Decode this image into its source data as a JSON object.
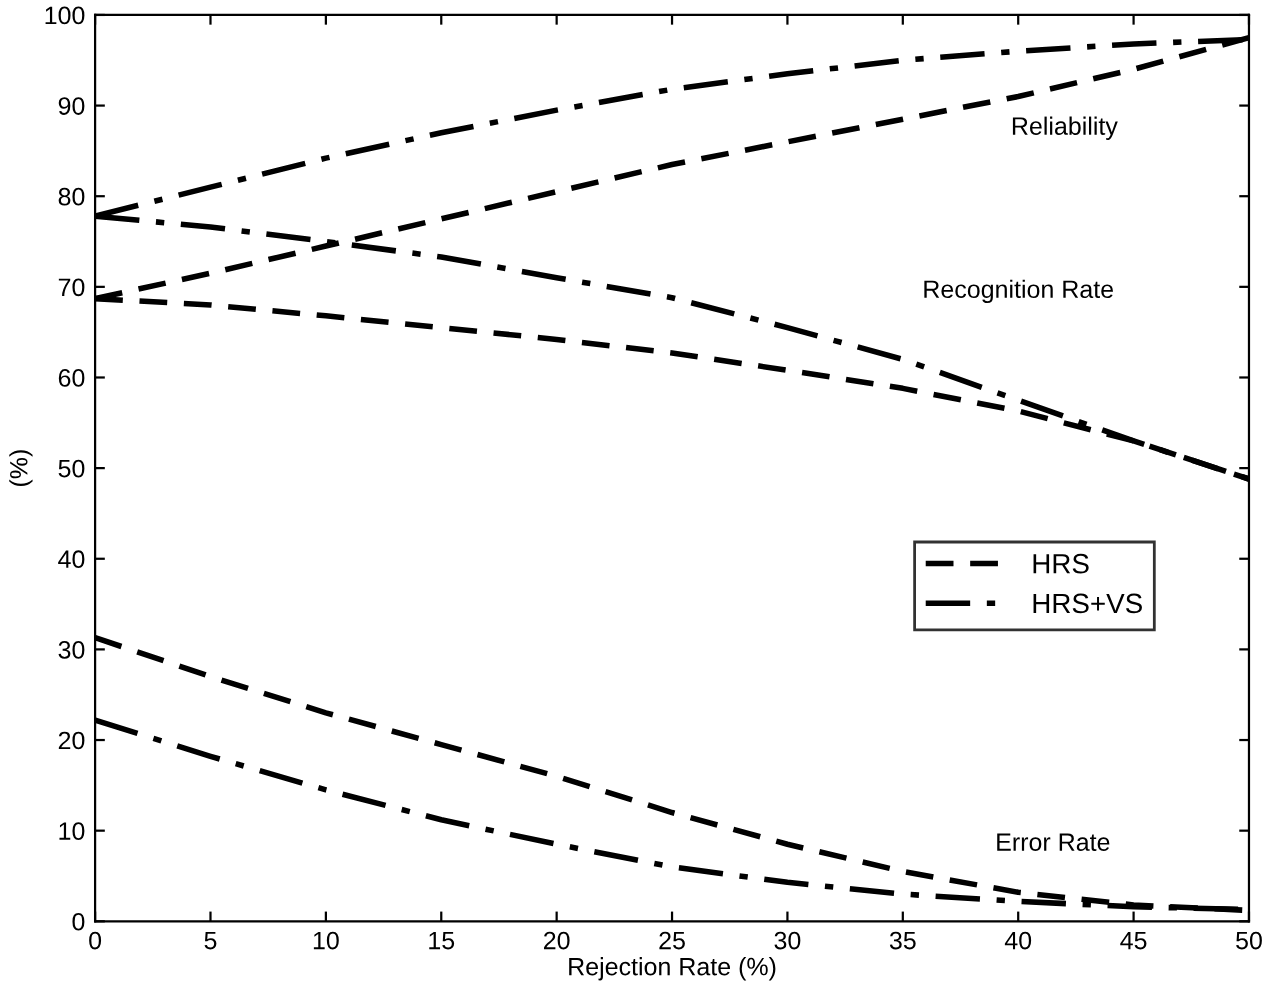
{
  "chart_data": {
    "type": "line",
    "xlabel": "Rejection Rate (%)",
    "ylabel": "(%)",
    "x": [
      0,
      5,
      10,
      15,
      20,
      25,
      30,
      35,
      40,
      45,
      50
    ],
    "series": [
      {
        "name": "HRS",
        "color": "#000000",
        "line_style": "dashed",
        "values": [
          68.7,
          71.5,
          74.5,
          77.5,
          80.5,
          83.5,
          86,
          88.5,
          91,
          94,
          97.5
        ]
      },
      {
        "name": "HRS+VS",
        "color": "#000000",
        "line_style": "dashdot",
        "values": [
          77.8,
          81,
          84.2,
          87,
          89.5,
          91.8,
          93.5,
          95,
          96,
          96.8,
          97.3
        ]
      },
      {
        "color": "#000000",
        "line_style": "dashed",
        "values": [
          68.7,
          68,
          66.8,
          65.5,
          64.2,
          62.7,
          60.8,
          58.8,
          56.3,
          53,
          48.8
        ]
      },
      {
        "color": "#000000",
        "line_style": "dashdot",
        "values": [
          77.8,
          76.6,
          75,
          73.3,
          71,
          68.8,
          65.5,
          62,
          57.5,
          53,
          48.8
        ]
      },
      {
        "color": "#000000",
        "line_style": "dashed",
        "values": [
          31.3,
          27,
          23,
          19.5,
          16,
          12,
          8.5,
          5.5,
          3.2,
          1.8,
          1.2
        ]
      },
      {
        "color": "#000000",
        "line_style": "dashdot",
        "values": [
          22.2,
          18.2,
          14.5,
          11.2,
          8.5,
          6,
          4.3,
          3,
          2.2,
          1.6,
          1.3
        ]
      }
    ],
    "annotations": [
      "Reliability",
      "Recognition Rate",
      "Error Rate"
    ],
    "xlim": [
      0,
      50
    ],
    "xticks": [
      0,
      5,
      10,
      15,
      20,
      25,
      30,
      35,
      40,
      45,
      50
    ],
    "ylim": [
      0,
      100
    ],
    "yticks": [
      0,
      10,
      20,
      30,
      40,
      50,
      60,
      70,
      80,
      90,
      100
    ],
    "grid": false,
    "legend": "center right",
    "marker": "none"
  }
}
